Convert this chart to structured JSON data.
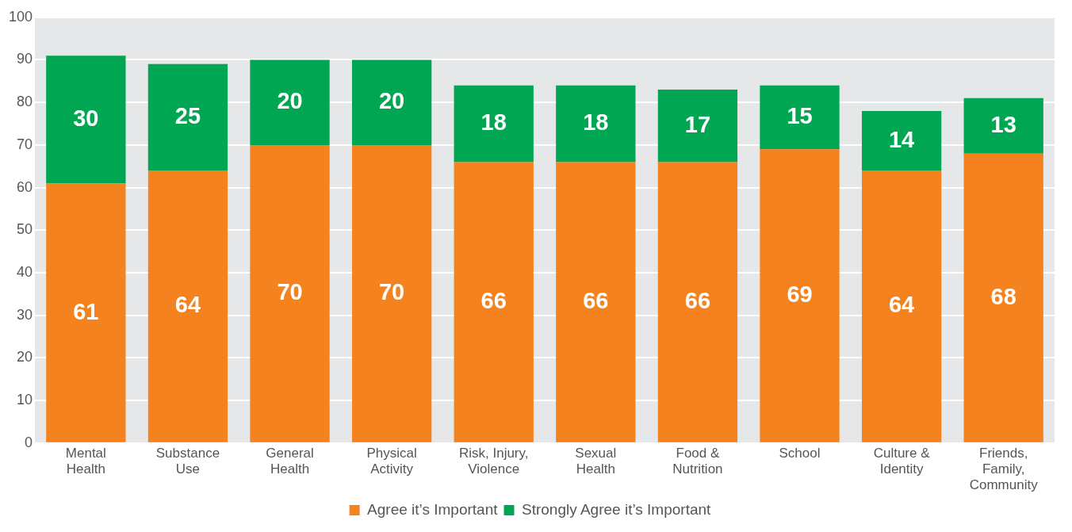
{
  "chart_data": {
    "type": "bar",
    "stacked": true,
    "categories": [
      "Mental Health",
      "Substance Use",
      "General Health",
      "Physical Activity",
      "Risk, Injury, Violence",
      "Sexual Health",
      "Food & Nutrition",
      "School",
      "Culture & Identity",
      "Friends, Family, Community"
    ],
    "series": [
      {
        "name": "Agree it’s Important",
        "color": "#f4821f",
        "values": [
          61,
          64,
          70,
          70,
          66,
          66,
          66,
          69,
          64,
          68
        ]
      },
      {
        "name": "Strongly Agree it’s Important",
        "color": "#00a651",
        "values": [
          30,
          25,
          20,
          20,
          18,
          18,
          17,
          15,
          14,
          13
        ]
      }
    ],
    "ylim": [
      0,
      100
    ],
    "yticks": [
      0,
      10,
      20,
      30,
      40,
      50,
      60,
      70,
      80,
      90,
      100
    ],
    "grid": "y",
    "legend": "bottom",
    "data_labels": true
  }
}
